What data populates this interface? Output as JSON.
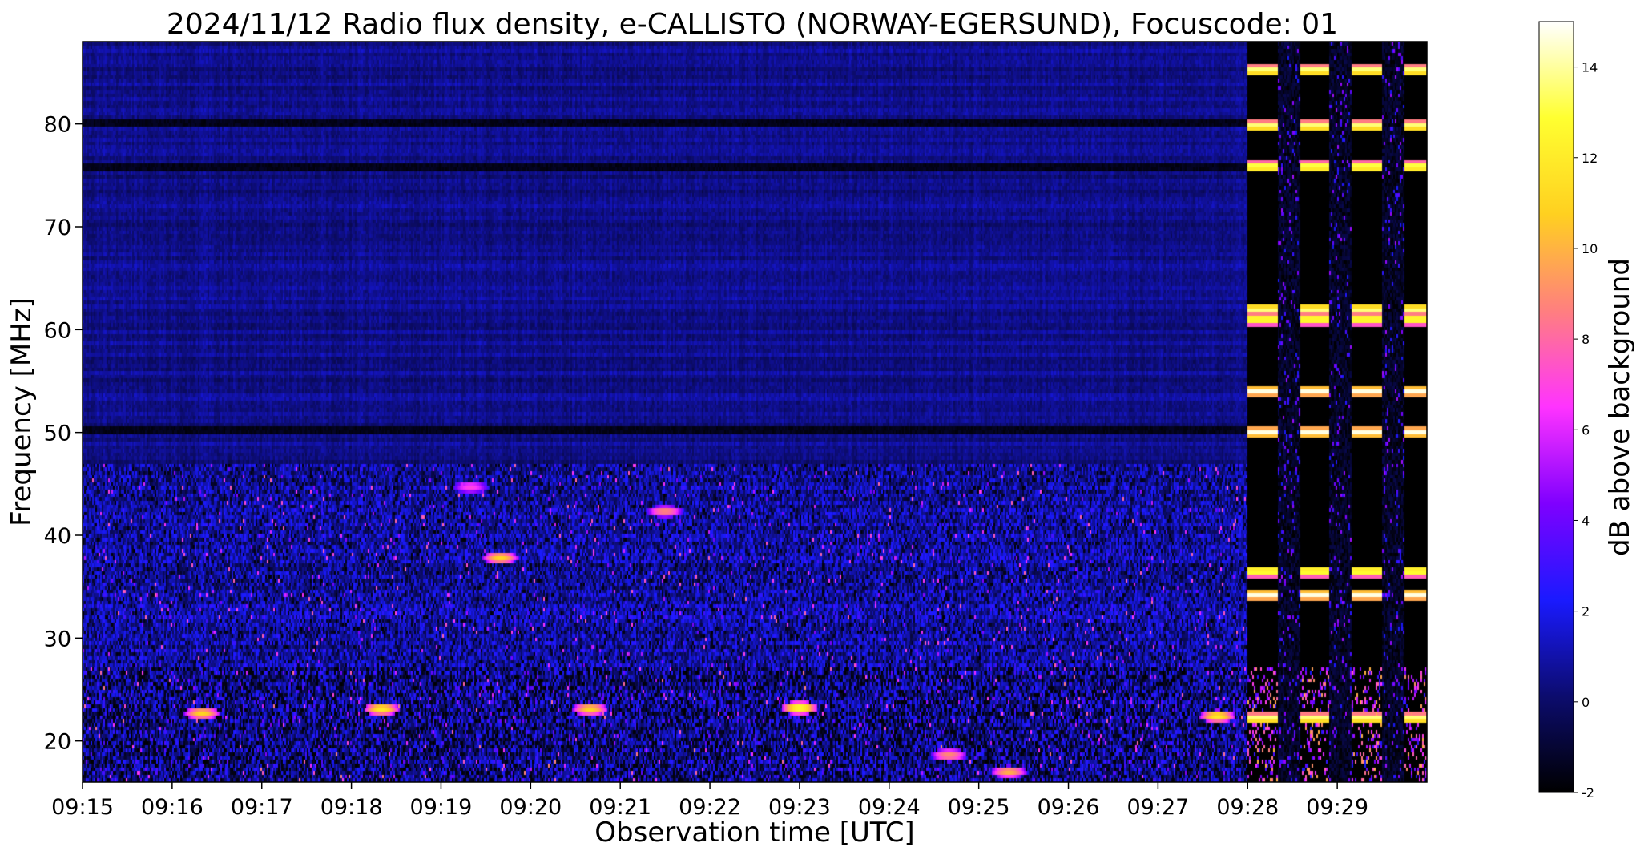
{
  "chart_data": {
    "type": "heatmap",
    "title": "2024/11/12  Radio flux density, e-CALLISTO (NORWAY-EGERSUND), Focuscode: 01",
    "xlabel": "Observation time [UTC]",
    "ylabel": "Frequency [MHz]",
    "x_start": "09:15",
    "x_end": "09:30",
    "xlim_minutes": [
      0,
      15
    ],
    "xticks": [
      "09:15",
      "09:16",
      "09:17",
      "09:18",
      "09:19",
      "09:20",
      "09:21",
      "09:22",
      "09:23",
      "09:24",
      "09:25",
      "09:26",
      "09:27",
      "09:28",
      "09:29"
    ],
    "ylim": [
      16,
      88
    ],
    "yticks": [
      20,
      30,
      40,
      50,
      60,
      70,
      80
    ],
    "colorbar": {
      "label": "dB above background",
      "range": [
        -2,
        15
      ],
      "ticks": [
        -2,
        0,
        2,
        4,
        6,
        8,
        10,
        12,
        14
      ],
      "colormap": "gnuplot2",
      "stops": [
        "#000000",
        "#0c0c6e",
        "#1a1aff",
        "#7f00ff",
        "#ff33ff",
        "#ff7f7f",
        "#ffd020",
        "#ffff30",
        "#ffffff"
      ]
    },
    "features": {
      "background_db": 0.5,
      "dark_bands_mhz": [
        80,
        75.8,
        50.2
      ],
      "interference_start_time": "09:28",
      "interference_columns": [
        {
          "start": "09:28:00",
          "end": "09:28:20"
        },
        {
          "start": "09:28:35",
          "end": "09:28:55"
        },
        {
          "start": "09:29:10",
          "end": "09:29:30"
        },
        {
          "start": "09:29:45",
          "end": "09:30:00"
        }
      ],
      "interference_bright_lines_mhz": [
        85.2,
        79.8,
        75.8,
        62,
        61,
        54,
        50,
        36.5,
        34.2,
        22.2
      ],
      "hot_spots": [
        {
          "time": "09:16:20",
          "mhz": 22.7,
          "db": 11
        },
        {
          "time": "09:18:20",
          "mhz": 23.1,
          "db": 12
        },
        {
          "time": "09:20:40",
          "mhz": 23.1,
          "db": 11
        },
        {
          "time": "09:23:00",
          "mhz": 23.2,
          "db": 13
        },
        {
          "time": "09:24:40",
          "mhz": 18.6,
          "db": 9
        },
        {
          "time": "09:25:20",
          "mhz": 17.0,
          "db": 10
        },
        {
          "time": "09:27:40",
          "mhz": 22.4,
          "db": 12
        },
        {
          "time": "09:19:40",
          "mhz": 37.8,
          "db": 11
        },
        {
          "time": "09:21:30",
          "mhz": 42.3,
          "db": 9
        },
        {
          "time": "09:19:20",
          "mhz": 44.7,
          "db": 7
        }
      ]
    }
  }
}
